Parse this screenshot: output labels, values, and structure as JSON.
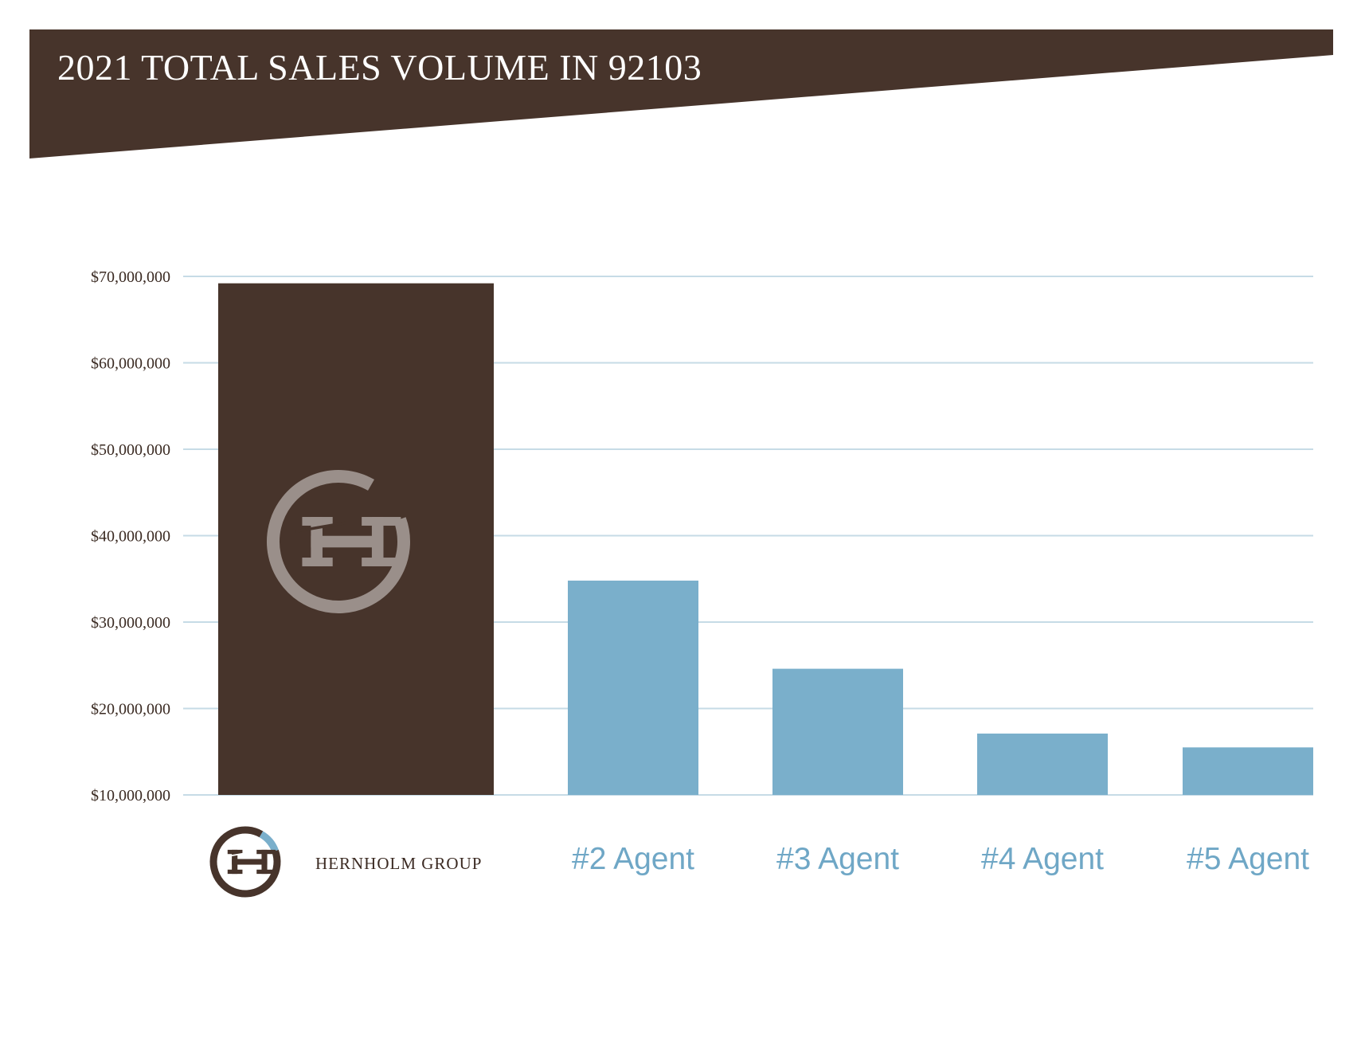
{
  "colors": {
    "brand_brown": "#47342b",
    "agent_blue": "#7aafcb",
    "grid_line": "#c6dbe6",
    "logo_grey": "#9a8f8a",
    "logo_blue": "#7aafcb",
    "label_blue": "#6fa7c6"
  },
  "chart_data": {
    "type": "bar",
    "title": "2021 TOTAL SALES VOLUME IN 92103",
    "xlabel": "",
    "ylabel": "",
    "ylim": [
      10000000,
      70000000
    ],
    "yticks": [
      10000000,
      20000000,
      30000000,
      40000000,
      50000000,
      60000000,
      70000000
    ],
    "ytick_labels": [
      "$10,000,000",
      "$20,000,000",
      "$30,000,000",
      "$40,000,000",
      "$50,000,000",
      "$60,000,000",
      "$70,000,000"
    ],
    "grid": true,
    "categories": [
      "HERNHOLM GROUP",
      "#2 Agent",
      "#3 Agent",
      "#4 Agent",
      "#5 Agent"
    ],
    "values": [
      69200000,
      34800000,
      24600000,
      17100000,
      15500000
    ],
    "bar_colors": [
      "#47342b",
      "#7aafcb",
      "#7aafcb",
      "#7aafcb",
      "#7aafcb"
    ]
  },
  "logo": {
    "icon": "hernholm-monogram-logo",
    "text": "HERNHOLM GROUP"
  }
}
